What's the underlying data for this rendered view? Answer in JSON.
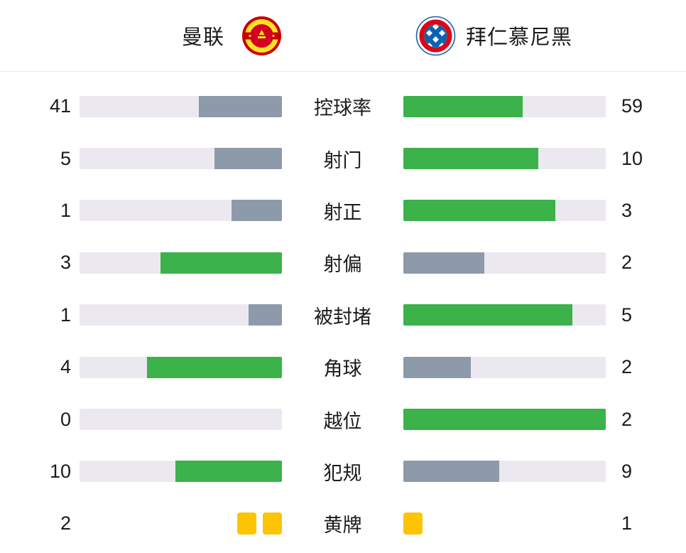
{
  "colors": {
    "green": "#3bb24a",
    "gray": "#8d9aa9",
    "track": "#ebe9ef",
    "yellow": "#fcc403",
    "text": "#1a1a1a",
    "divider": "#e9e9e9"
  },
  "header": {
    "home_team": "曼联",
    "away_team": "拜仁慕尼黑",
    "home_logo": "manchester-united-crest",
    "away_logo": "fc-bayern-munchen-crest"
  },
  "rows": [
    {
      "type": "bar",
      "label": "控球率",
      "home": 41,
      "away": 59,
      "home_color": "gray",
      "away_color": "green"
    },
    {
      "type": "bar",
      "label": "射门",
      "home": 5,
      "away": 10,
      "home_color": "gray",
      "away_color": "green"
    },
    {
      "type": "bar",
      "label": "射正",
      "home": 1,
      "away": 3,
      "home_color": "gray",
      "away_color": "green"
    },
    {
      "type": "bar",
      "label": "射偏",
      "home": 3,
      "away": 2,
      "home_color": "green",
      "away_color": "gray"
    },
    {
      "type": "bar",
      "label": "被封堵",
      "home": 1,
      "away": 5,
      "home_color": "gray",
      "away_color": "green"
    },
    {
      "type": "bar",
      "label": "角球",
      "home": 4,
      "away": 2,
      "home_color": "green",
      "away_color": "gray"
    },
    {
      "type": "bar",
      "label": "越位",
      "home": 0,
      "away": 2,
      "home_color": "gray",
      "away_color": "green"
    },
    {
      "type": "bar",
      "label": "犯规",
      "home": 10,
      "away": 9,
      "home_color": "green",
      "away_color": "gray"
    },
    {
      "type": "cards",
      "label": "黄牌",
      "home": 2,
      "away": 1,
      "card_color": "yellow"
    }
  ],
  "chart_data": {
    "type": "bar",
    "title": "曼联 vs 拜仁慕尼黑",
    "orientation": "horizontal-mirrored",
    "categories": [
      "控球率",
      "射门",
      "射正",
      "射偏",
      "被封堵",
      "角球",
      "越位",
      "犯规",
      "黄牌"
    ],
    "series": [
      {
        "name": "曼联",
        "values": [
          41,
          5,
          1,
          3,
          1,
          4,
          0,
          10,
          2
        ]
      },
      {
        "name": "拜仁慕尼黑",
        "values": [
          59,
          10,
          3,
          2,
          5,
          2,
          2,
          9,
          1
        ]
      }
    ],
    "bar_scale": "value divided by row total (home+away)",
    "winner_bar_color": "#3bb24a",
    "loser_bar_color": "#8d9aa9",
    "track_color": "#ebe9ef",
    "legend_position": "top"
  }
}
